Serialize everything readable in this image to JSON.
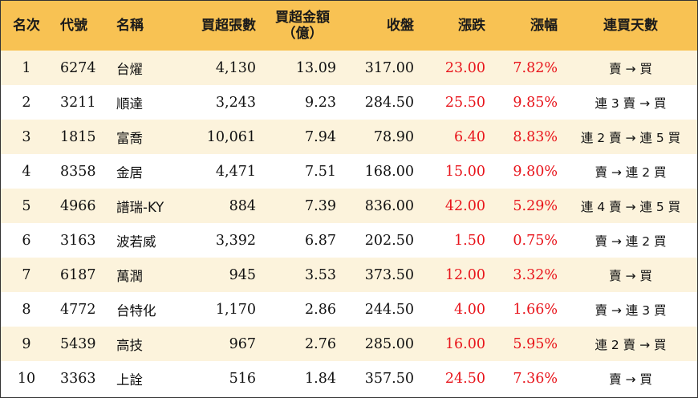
{
  "table": {
    "headers": {
      "rank": "名次",
      "code": "代號",
      "name": "名稱",
      "net_lots": "買超張數",
      "net_amount_line1": "買超金額",
      "net_amount_line2": "（億）",
      "close": "收盤",
      "change": "漲跌",
      "pct": "漲幅",
      "streak": "連買天數"
    },
    "rows": [
      {
        "rank": "1",
        "code": "6274",
        "name": "台燿",
        "net_lots": "4,130",
        "net_amount": "13.09",
        "close": "317.00",
        "change": "23.00",
        "pct": "7.82%",
        "streak": "賣 → 買"
      },
      {
        "rank": "2",
        "code": "3211",
        "name": "順達",
        "net_lots": "3,243",
        "net_amount": "9.23",
        "close": "284.50",
        "change": "25.50",
        "pct": "9.85%",
        "streak": "連 3 賣 → 買"
      },
      {
        "rank": "3",
        "code": "1815",
        "name": "富喬",
        "net_lots": "10,061",
        "net_amount": "7.94",
        "close": "78.90",
        "change": "6.40",
        "pct": "8.83%",
        "streak": "連 2 賣 → 連 5 買"
      },
      {
        "rank": "4",
        "code": "8358",
        "name": "金居",
        "net_lots": "4,471",
        "net_amount": "7.51",
        "close": "168.00",
        "change": "15.00",
        "pct": "9.80%",
        "streak": "賣 → 連 2 買"
      },
      {
        "rank": "5",
        "code": "4966",
        "name": "譜瑞-KY",
        "net_lots": "884",
        "net_amount": "7.39",
        "close": "836.00",
        "change": "42.00",
        "pct": "5.29%",
        "streak": "連 4 賣 → 連 5 買"
      },
      {
        "rank": "6",
        "code": "3163",
        "name": "波若威",
        "net_lots": "3,392",
        "net_amount": "6.87",
        "close": "202.50",
        "change": "1.50",
        "pct": "0.75%",
        "streak": "賣 → 連 2 買"
      },
      {
        "rank": "7",
        "code": "6187",
        "name": "萬潤",
        "net_lots": "945",
        "net_amount": "3.53",
        "close": "373.50",
        "change": "12.00",
        "pct": "3.32%",
        "streak": "賣 → 買"
      },
      {
        "rank": "8",
        "code": "4772",
        "name": "台特化",
        "net_lots": "1,170",
        "net_amount": "2.86",
        "close": "244.50",
        "change": "4.00",
        "pct": "1.66%",
        "streak": "賣 → 連 3 買"
      },
      {
        "rank": "9",
        "code": "5439",
        "name": "高技",
        "net_lots": "967",
        "net_amount": "2.76",
        "close": "285.00",
        "change": "16.00",
        "pct": "5.95%",
        "streak": "連 2 賣 → 買"
      },
      {
        "rank": "10",
        "code": "3363",
        "name": "上詮",
        "net_lots": "516",
        "net_amount": "1.84",
        "close": "357.50",
        "change": "24.50",
        "pct": "7.36%",
        "streak": "賣 → 買"
      }
    ]
  },
  "colors": {
    "header_bg": "#f8c253",
    "odd_row_bg": "#fcf3dc",
    "positive_change": "#e8141b"
  }
}
